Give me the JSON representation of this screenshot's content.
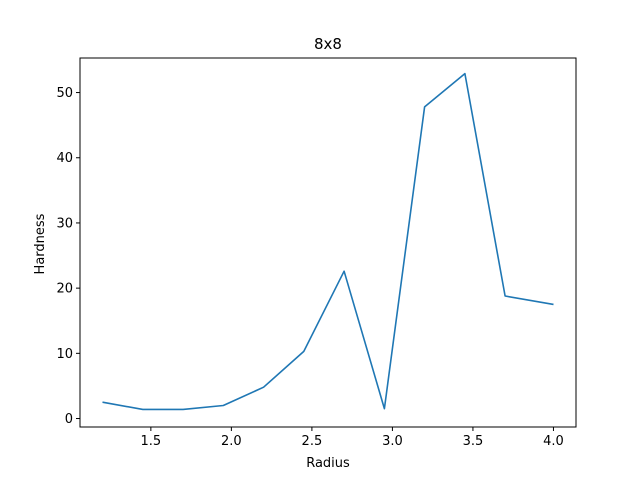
{
  "chart_data": {
    "type": "line",
    "title": "8x8",
    "xlabel": "Radius",
    "ylabel": "Hardness",
    "xlim": [
      1.06,
      4.14
    ],
    "ylim": [
      -1.3,
      55.3
    ],
    "xticks": [
      1.5,
      2.0,
      2.5,
      3.0,
      3.5,
      4.0
    ],
    "xtick_labels": [
      "1.5",
      "2.0",
      "2.5",
      "3.0",
      "3.5",
      "4.0"
    ],
    "yticks": [
      0,
      10,
      20,
      30,
      40,
      50
    ],
    "ytick_labels": [
      "0",
      "10",
      "20",
      "30",
      "40",
      "50"
    ],
    "grid": false,
    "series": [
      {
        "color": "#1f77b4",
        "x": [
          1.2,
          1.45,
          1.7,
          1.95,
          2.2,
          2.45,
          2.7,
          2.95,
          3.2,
          3.45,
          3.7,
          4.0
        ],
        "y": [
          2.5,
          1.4,
          1.4,
          2.0,
          4.8,
          10.3,
          22.6,
          1.5,
          47.8,
          52.9,
          18.8,
          17.5
        ]
      }
    ]
  }
}
